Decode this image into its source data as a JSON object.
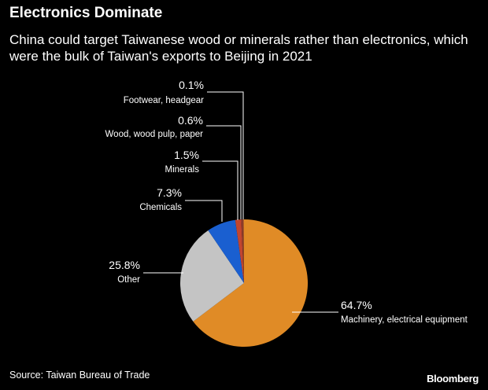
{
  "header": {
    "title": "Electronics Dominate",
    "subtitle": "China could target Taiwanese wood or minerals rather than electronics, which were the bulk of Taiwan's exports to Beijing in 2021"
  },
  "footer": {
    "source": "Source: Taiwan Bureau of Trade",
    "brand": "Bloomberg"
  },
  "chart_data": {
    "type": "pie",
    "title": "Electronics Dominate",
    "subtitle": "China could target Taiwanese wood or minerals rather than electronics, which were the bulk of Taiwan's exports to Beijing in 2021",
    "slices": [
      {
        "label": "Machinery, electrical equipment",
        "value": 64.7,
        "display": "64.7%",
        "color": "#e08b26"
      },
      {
        "label": "Other",
        "value": 25.8,
        "display": "25.8%",
        "color": "#c4c4c4"
      },
      {
        "label": "Chemicals",
        "value": 7.3,
        "display": "7.3%",
        "color": "#1a5fd0"
      },
      {
        "label": "Minerals",
        "value": 1.5,
        "display": "1.5%",
        "color": "#c2452f"
      },
      {
        "label": "Wood, wood pulp, paper",
        "value": 0.6,
        "display": "0.6%",
        "color": "#8a3b2a"
      },
      {
        "label": "Footwear, headgear",
        "value": 0.1,
        "display": "0.1%",
        "color": "#e08b26"
      }
    ],
    "legend": "none"
  }
}
